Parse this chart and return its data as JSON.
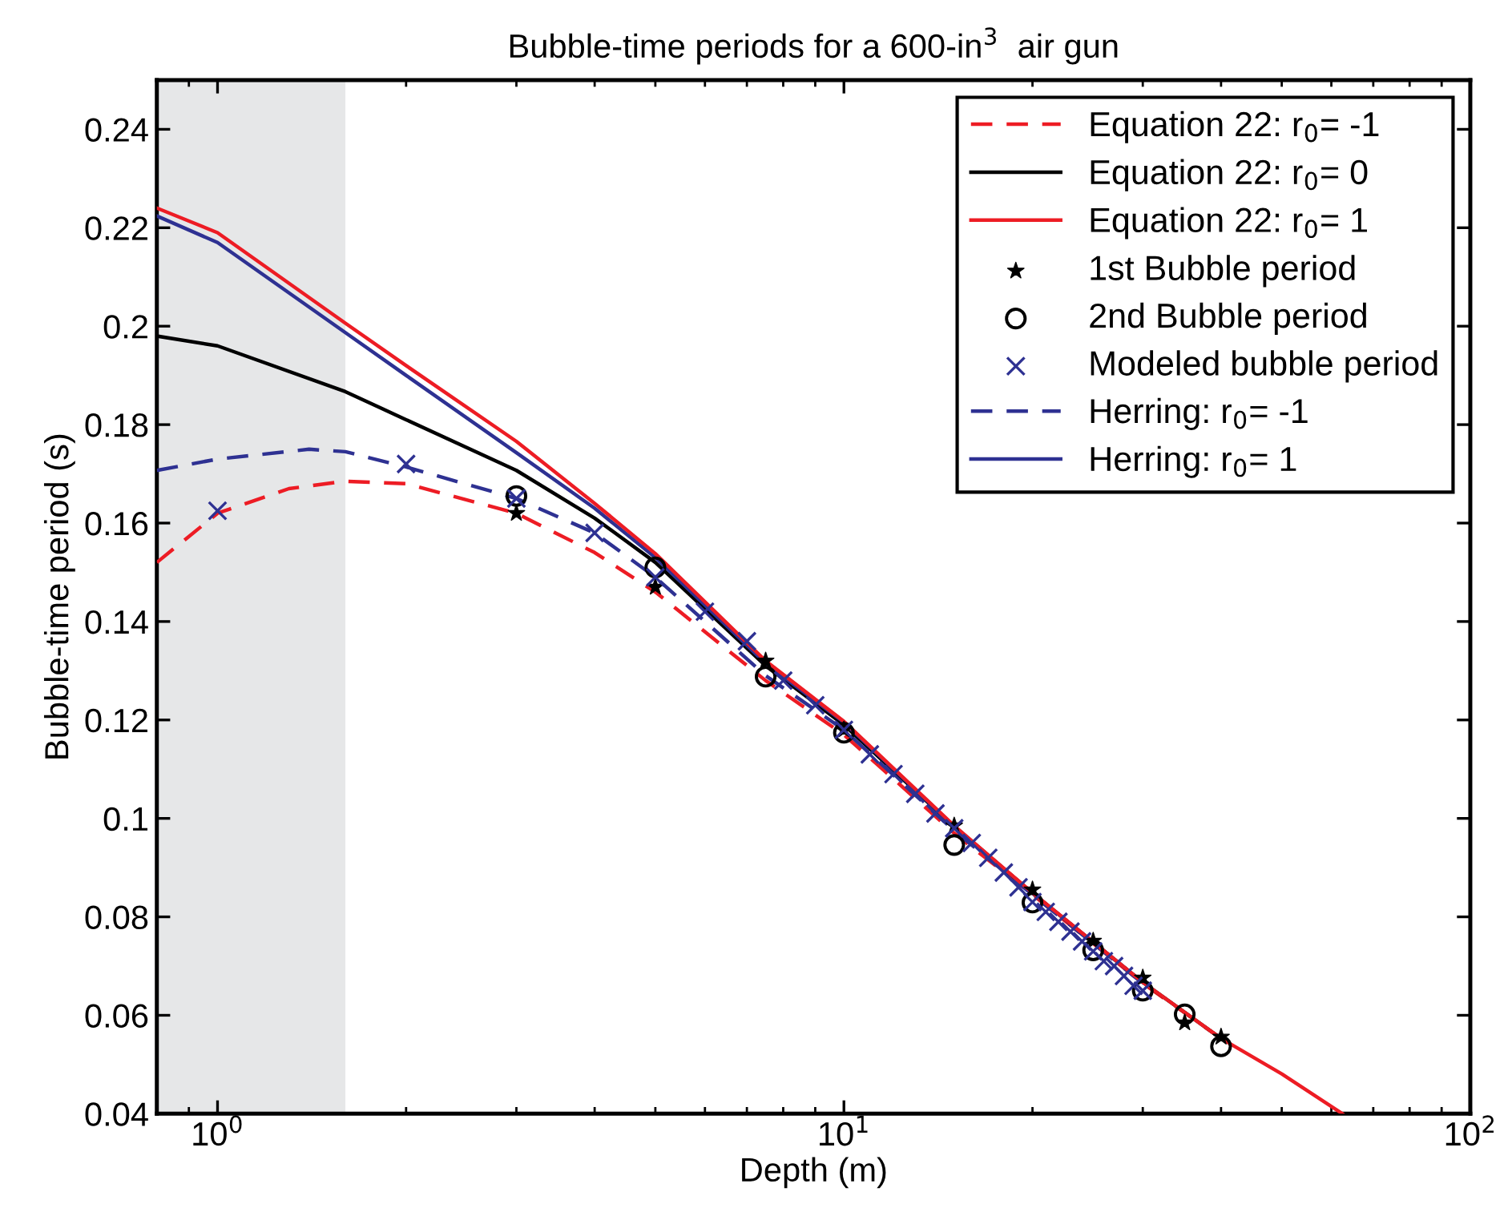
{
  "chart_data": {
    "type": "line",
    "title": "Bubble-time periods for a 600-in$^{3}$  air gun",
    "xlabel": "Depth (m)",
    "ylabel": "Bubble-time period (s)",
    "log": "x",
    "xlim": [
      0.8,
      100
    ],
    "ylim": [
      0.04,
      0.25
    ],
    "xticks": [
      {
        "value": 1,
        "label": "10$^{0}$"
      },
      {
        "value": 10,
        "label": "10$^{1}$"
      },
      {
        "value": 100,
        "label": "10$^{2}$"
      }
    ],
    "yticks": [
      0.04,
      0.06,
      0.08,
      0.1,
      0.12,
      0.14,
      0.16,
      0.18,
      0.2,
      0.22,
      0.24
    ],
    "grid": false,
    "legend": "top right",
    "bands": [
      {
        "axis": "x",
        "from": 0.8,
        "to": 1.6,
        "color": "#e6e7e8"
      }
    ],
    "series": [
      {
        "name": "Equation 22: r$_{0}$= -1",
        "line_style": "dashed",
        "marker": "none",
        "color": "#ed1c24",
        "x": [
          0.8,
          1,
          1.3,
          1.6,
          2,
          3,
          4,
          5,
          7.5,
          10,
          15,
          20,
          30,
          40
        ],
        "values": [
          0.152,
          0.162,
          0.167,
          0.1685,
          0.168,
          0.162,
          0.154,
          0.146,
          0.128,
          0.117,
          0.097,
          0.0845,
          0.0665,
          0.0553
        ]
      },
      {
        "name": "Equation 22: r$_{0}$= 0",
        "line_style": "solid",
        "marker": "none",
        "color": "#000000",
        "x": [
          0.8,
          1,
          1.6,
          2,
          3,
          4,
          5,
          7.5,
          10,
          15,
          20,
          30,
          40
        ],
        "values": [
          0.198,
          0.196,
          0.1867,
          0.181,
          0.1707,
          0.161,
          0.152,
          0.131,
          0.119,
          0.0983,
          0.0848,
          0.0667,
          0.0553
        ]
      },
      {
        "name": "Equation 22: r$_{0}$= 1",
        "line_style": "solid",
        "marker": "none",
        "color": "#ed1c24",
        "x": [
          0.8,
          1,
          1.6,
          2,
          3,
          4,
          5,
          7.5,
          10,
          15,
          20,
          30,
          40,
          50,
          62.5
        ],
        "values": [
          0.224,
          0.219,
          0.2006,
          0.192,
          0.1766,
          0.164,
          0.1538,
          0.132,
          0.1197,
          0.0985,
          0.0849,
          0.0667,
          0.0553,
          0.0481,
          0.04
        ]
      },
      {
        "name": "1st Bubble period",
        "type": "scatter",
        "marker": "star",
        "color": "#000000",
        "x": [
          3,
          5,
          7.5,
          10,
          15,
          20,
          25,
          30,
          35,
          40
        ],
        "values": [
          0.162,
          0.147,
          0.132,
          0.118,
          0.0985,
          0.0855,
          0.0751,
          0.0676,
          0.0585,
          0.0556
        ]
      },
      {
        "name": "2nd Bubble period",
        "type": "scatter",
        "marker": "circle",
        "color": "#000000",
        "x": [
          3,
          5,
          7.5,
          10,
          15,
          20,
          25,
          30,
          35,
          40
        ],
        "values": [
          0.1655,
          0.151,
          0.1288,
          0.1174,
          0.0946,
          0.0829,
          0.0732,
          0.065,
          0.0602,
          0.0537
        ]
      },
      {
        "name": "Modeled bubble period",
        "type": "scatter",
        "marker": "cross",
        "color": "#2e3192",
        "x": [
          1,
          2,
          3,
          4,
          5,
          6,
          7,
          8,
          9,
          10,
          11,
          12,
          13,
          14,
          15,
          16,
          17,
          18,
          19,
          20,
          21,
          22,
          23,
          24,
          25,
          26,
          27,
          28,
          29,
          30
        ],
        "values": [
          0.1625,
          0.172,
          0.165,
          0.158,
          0.149,
          0.142,
          0.136,
          0.128,
          0.123,
          0.118,
          0.113,
          0.109,
          0.105,
          0.101,
          0.098,
          0.095,
          0.092,
          0.089,
          0.086,
          0.083,
          0.081,
          0.079,
          0.077,
          0.075,
          0.073,
          0.071,
          0.07,
          0.068,
          0.066,
          0.065
        ]
      },
      {
        "name": "Herring: r$_{0}$= -1",
        "line_style": "dashed",
        "marker": "none",
        "color": "#2e3192",
        "x": [
          0.8,
          1,
          1.4,
          1.6,
          2,
          3,
          4,
          5,
          7.5,
          10,
          15,
          20,
          30
        ],
        "values": [
          0.1707,
          0.173,
          0.175,
          0.1745,
          0.1714,
          0.165,
          0.158,
          0.149,
          0.129,
          0.118,
          0.0975,
          0.0845,
          0.0665
        ]
      },
      {
        "name": "Herring: r$_{0}$= 1",
        "line_style": "solid",
        "marker": "none",
        "color": "#2e3192",
        "x": [
          0.8,
          1,
          1.6,
          2,
          3,
          4,
          5,
          7.5,
          10,
          15,
          20,
          30
        ],
        "values": [
          0.2224,
          0.217,
          0.1987,
          0.19,
          0.1743,
          0.163,
          0.153,
          0.1315,
          0.1195,
          0.0984,
          0.0848,
          0.0667
        ]
      }
    ]
  }
}
